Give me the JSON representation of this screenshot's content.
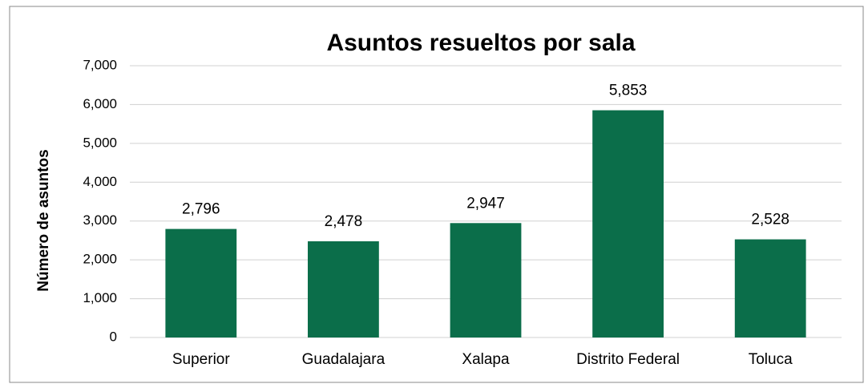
{
  "chart_data": {
    "type": "bar",
    "title": "Asuntos resueltos por sala",
    "y_label": "Número de asuntos",
    "categories": [
      "Superior",
      "Guadalajara",
      "Xalapa",
      "Distrito Federal",
      "Toluca"
    ],
    "values": [
      2796,
      2478,
      2947,
      5853,
      2528
    ],
    "value_labels": [
      "2,796",
      "2,478",
      "2,947",
      "5,853",
      "2,528"
    ],
    "color": "#0b6e4a",
    "ylim": [
      0,
      7000
    ],
    "yticks": [
      0,
      {
        "value": 1000,
        "label": "1,000"
      },
      {
        "value": 2000,
        "label": "2,000"
      },
      {
        "value": 3000,
        "label": "3,000"
      },
      {
        "value": 4000,
        "label": "4,000"
      },
      {
        "value": 5000,
        "label": "5,000"
      },
      {
        "value": 6000,
        "label": "6,000"
      },
      {
        "value": 7000,
        "label": "7,000"
      }
    ],
    "grid": true
  }
}
